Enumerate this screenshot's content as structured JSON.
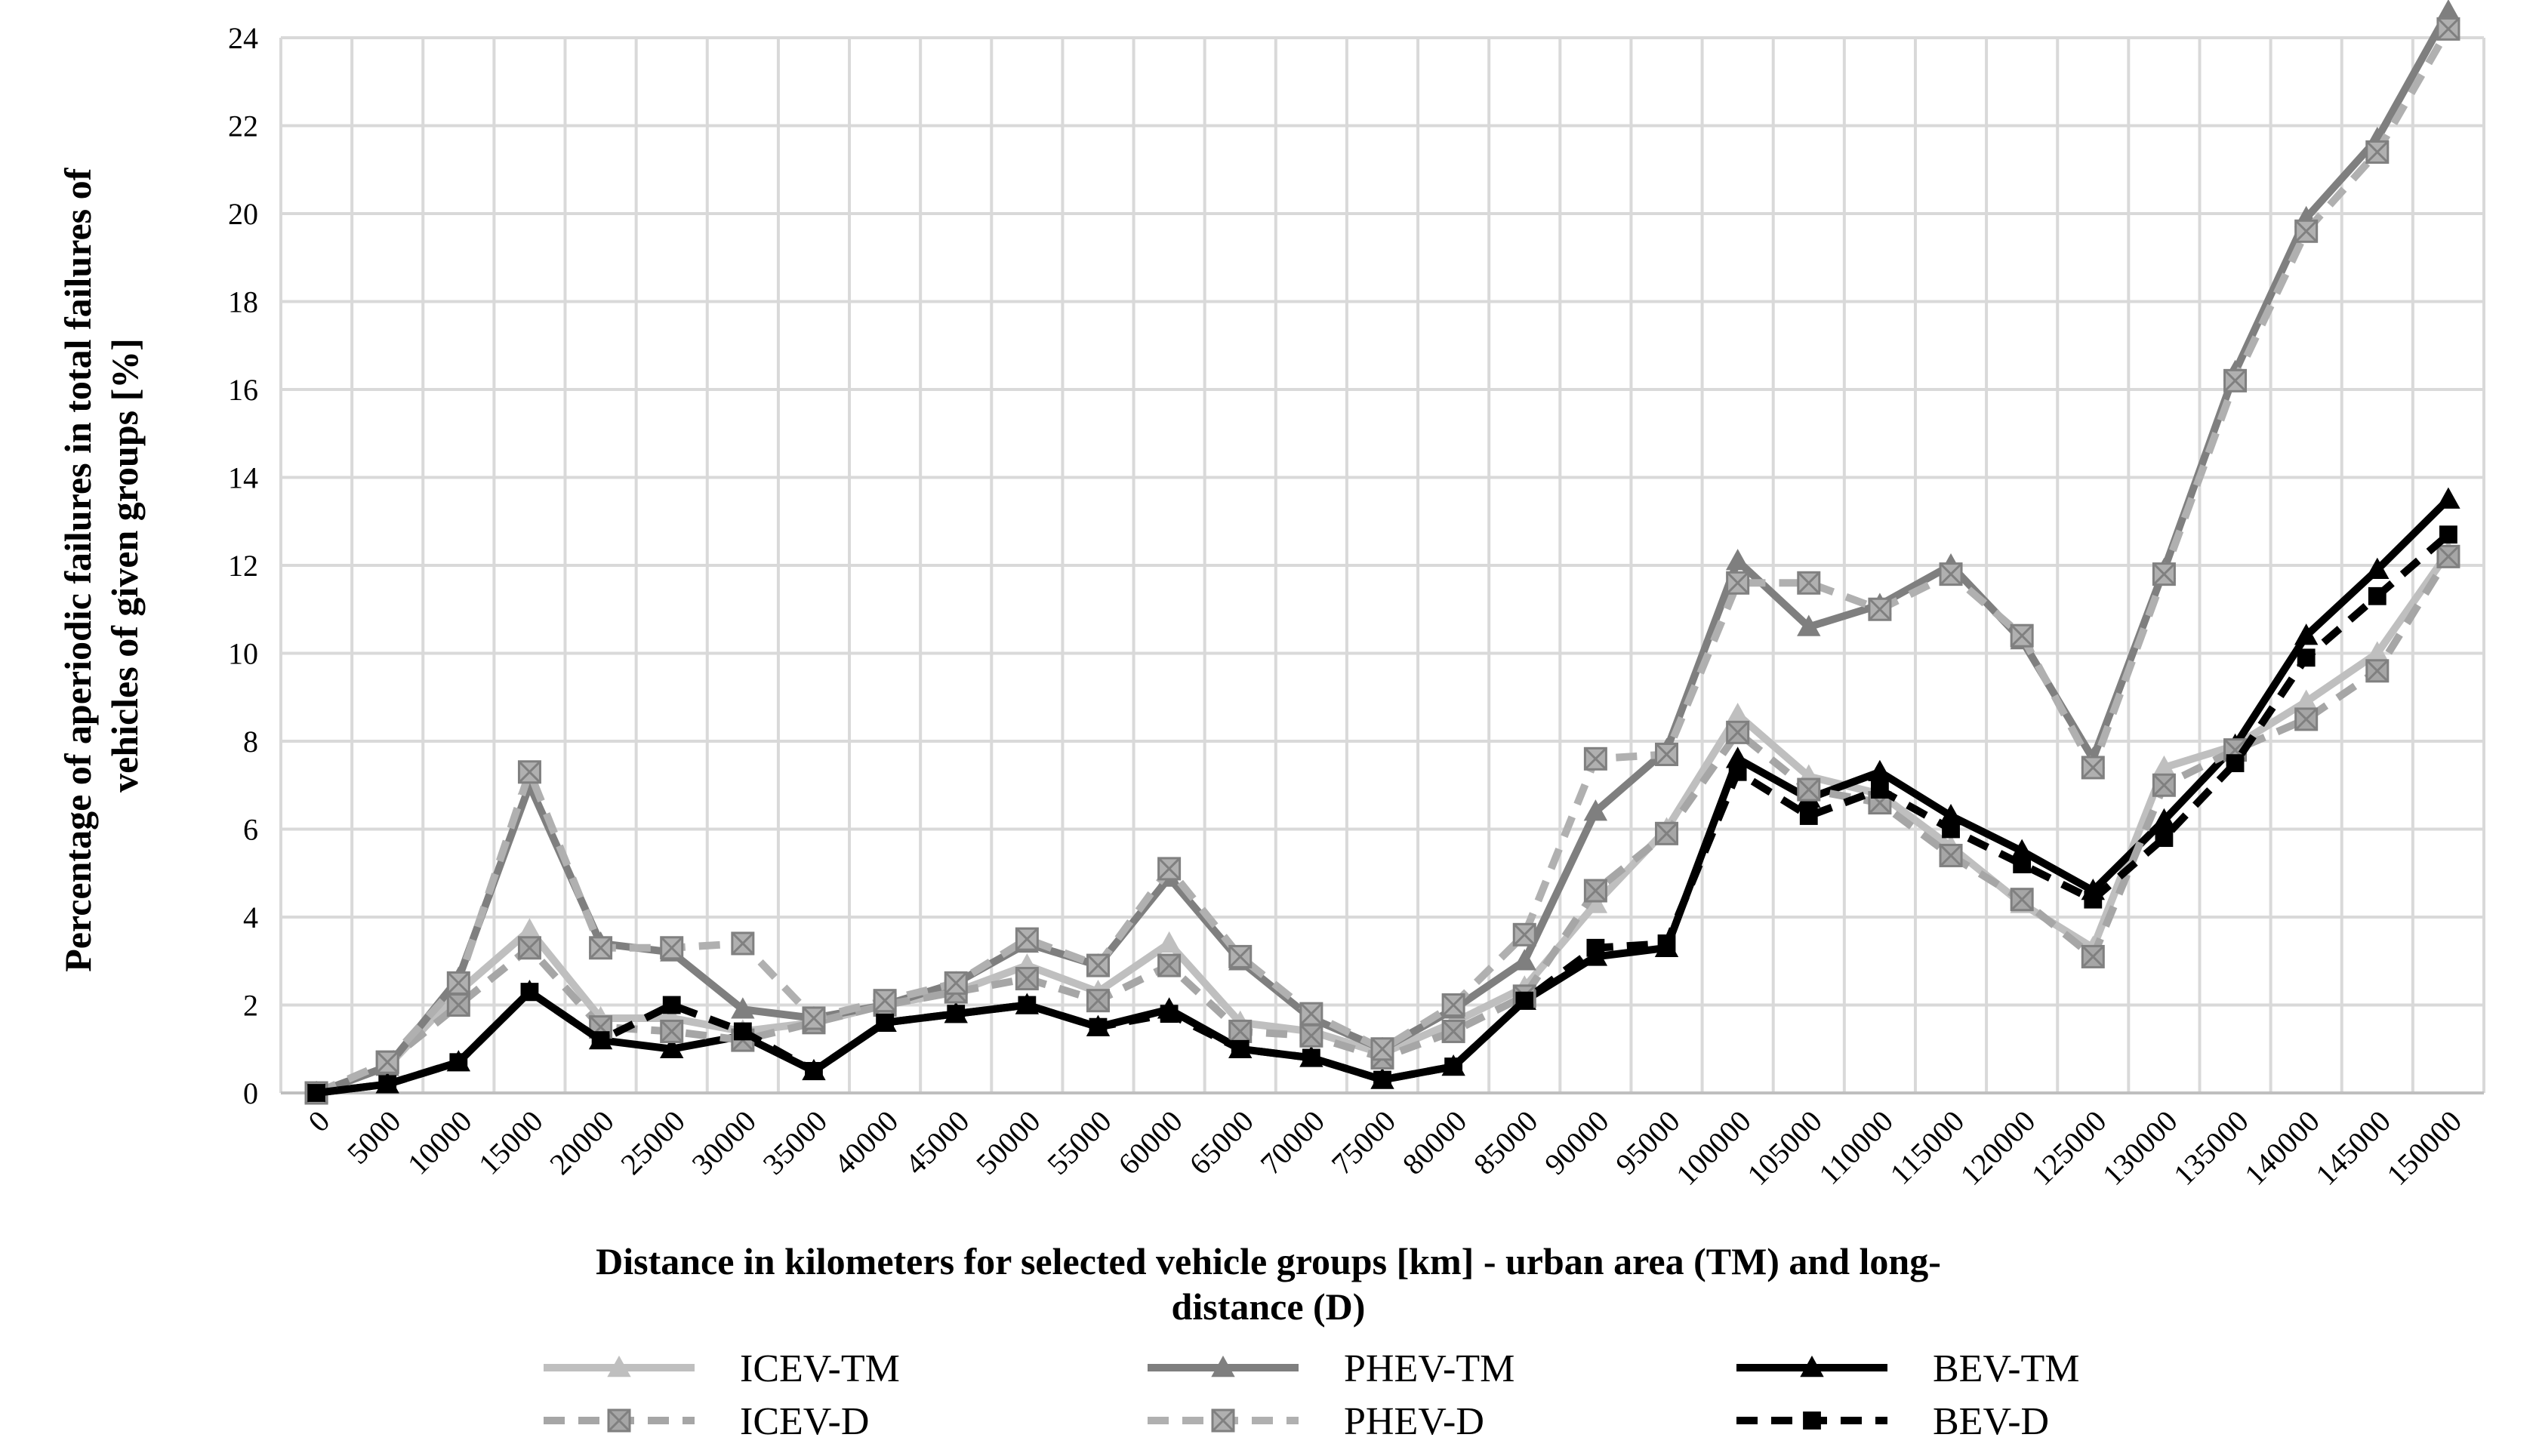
{
  "chart_data": {
    "type": "line",
    "title": "",
    "xlabel_lines": [
      "Distance in kilometers for selected vehicle groups [km] - urban area (TM) and long-",
      "distance (D)"
    ],
    "ylabel_lines": [
      "Percentage of aperiodic failures in total failures of",
      "vehicles of given groups [%]"
    ],
    "ylim": [
      0,
      24
    ],
    "yticks": [
      "0",
      "2",
      "4",
      "6",
      "8",
      "10",
      "12",
      "14",
      "16",
      "18",
      "20",
      "22",
      "24"
    ],
    "categories": [
      "0",
      "5000",
      "10000",
      "15000",
      "20000",
      "25000",
      "30000",
      "35000",
      "40000",
      "45000",
      "50000",
      "55000",
      "60000",
      "65000",
      "70000",
      "75000",
      "80000",
      "85000",
      "90000",
      "95000",
      "100000",
      "105000",
      "110000",
      "115000",
      "120000",
      "125000",
      "130000",
      "135000",
      "140000",
      "145000",
      "150000"
    ],
    "grid": true,
    "legend_position": "bottom",
    "series": [
      {
        "name": "ICEV-TM",
        "color": "#bfbfbf",
        "dash": "solid",
        "marker": "triangle",
        "values": [
          0,
          0.6,
          2.3,
          3.7,
          1.7,
          1.7,
          1.4,
          1.6,
          2.0,
          2.3,
          2.9,
          2.3,
          3.4,
          1.6,
          1.4,
          0.9,
          1.6,
          2.4,
          4.3,
          6.0,
          8.6,
          7.2,
          6.8,
          5.6,
          4.3,
          3.3,
          7.4,
          7.9,
          8.9,
          10.0,
          12.3
        ]
      },
      {
        "name": "PHEV-TM",
        "color": "#7f7f7f",
        "dash": "solid",
        "marker": "triangle",
        "values": [
          0,
          0.6,
          2.6,
          7.0,
          3.4,
          3.2,
          1.9,
          1.7,
          2.0,
          2.5,
          3.4,
          2.9,
          4.9,
          3.0,
          1.7,
          1.0,
          1.9,
          3.0,
          6.4,
          7.8,
          12.1,
          10.6,
          11.1,
          12.0,
          10.3,
          7.6,
          11.9,
          16.4,
          19.9,
          21.7,
          24.6
        ]
      },
      {
        "name": "BEV-TM",
        "color": "#000000",
        "dash": "solid",
        "marker": "triangle",
        "values": [
          0,
          0.2,
          0.7,
          2.3,
          1.2,
          1.0,
          1.3,
          0.5,
          1.6,
          1.8,
          2.0,
          1.5,
          1.9,
          1.0,
          0.8,
          0.3,
          0.6,
          2.1,
          3.1,
          3.3,
          7.6,
          6.7,
          7.3,
          6.3,
          5.5,
          4.6,
          6.2,
          7.9,
          10.4,
          11.9,
          13.5
        ]
      },
      {
        "name": "ICEV-D",
        "color": "#a6a6a6",
        "dash": "dashed",
        "marker": "x-square",
        "values": [
          0,
          0.7,
          2.0,
          3.3,
          1.5,
          1.4,
          1.2,
          1.6,
          2.0,
          2.3,
          2.6,
          2.1,
          2.9,
          1.4,
          1.3,
          0.8,
          1.4,
          2.2,
          4.6,
          5.9,
          8.2,
          6.9,
          6.6,
          5.4,
          4.4,
          3.1,
          7.0,
          7.8,
          8.5,
          9.6,
          12.2
        ]
      },
      {
        "name": "PHEV-D",
        "color": "#b0b0b0",
        "dash": "dashed",
        "marker": "x-square",
        "values": [
          0,
          0.7,
          2.5,
          7.3,
          3.3,
          3.3,
          3.4,
          1.7,
          2.1,
          2.5,
          3.5,
          2.9,
          5.1,
          3.1,
          1.8,
          1.0,
          2.0,
          3.6,
          7.6,
          7.7,
          11.6,
          11.6,
          11.0,
          11.8,
          10.4,
          7.4,
          11.8,
          16.2,
          19.6,
          21.4,
          24.2
        ]
      },
      {
        "name": "BEV-D",
        "color": "#000000",
        "dash": "dashed",
        "marker": "square",
        "values": [
          0,
          0.2,
          0.7,
          2.3,
          1.2,
          2.0,
          1.4,
          0.5,
          1.6,
          1.8,
          2.0,
          1.5,
          1.8,
          1.0,
          0.8,
          0.3,
          0.6,
          2.1,
          3.3,
          3.4,
          7.3,
          6.3,
          6.9,
          6.0,
          5.2,
          4.4,
          5.8,
          7.5,
          9.9,
          11.3,
          12.7
        ]
      }
    ]
  }
}
